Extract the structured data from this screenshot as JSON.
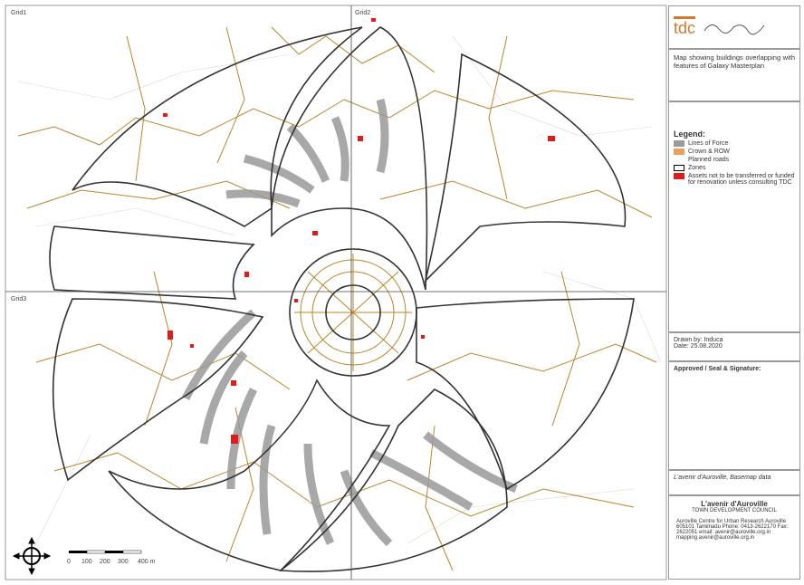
{
  "map": {
    "grid_labels": [
      "Grid1",
      "Grid2",
      "Grid3"
    ],
    "scale_labels": [
      "0",
      "100",
      "200",
      "300",
      "400 m"
    ]
  },
  "sidebar": {
    "logo": "tdc",
    "title": "Map showing buildings overlapping with features of Galaxy Masterplan",
    "legend": {
      "heading": "Legend:",
      "items": [
        "Lines of Force",
        "Crown & ROW",
        "Planned roads",
        "Zones",
        "Assets not to be transferred or funded for renovation unless consulting TDC"
      ]
    },
    "drawn_by": "Drawn by: Induca",
    "date": "Date: 25.08.2020",
    "approval": "Approved / Seal & Signature:",
    "source": "L'avenir d'Auroville, Basemap data",
    "org_name": "L'avenir d'Auroville",
    "org_sub": "TOWN DEVELOPMENT COUNCIL",
    "address": "Auroville Centre for Urban Research Auroville 605101 Tamilnadu Phone: 0413-2622170 Fax: 2622051 email: avenir@auroville.org.in mapping.avenir@auroville.org.in"
  }
}
